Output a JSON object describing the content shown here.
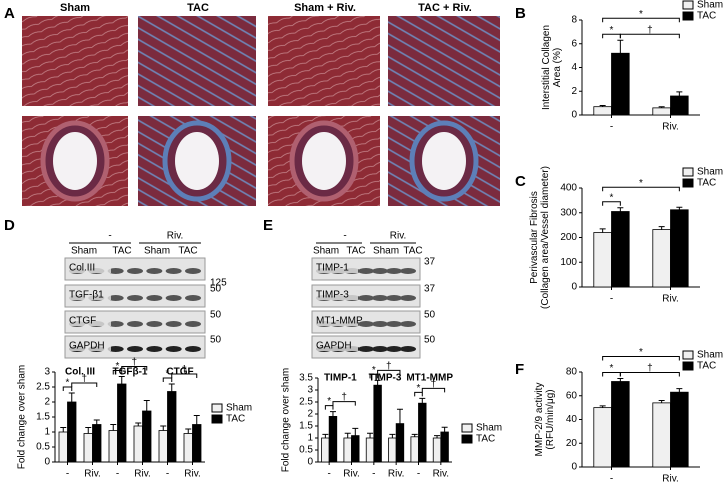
{
  "panel_letters": [
    "A",
    "B",
    "C",
    "D",
    "E",
    "F"
  ],
  "histology": {
    "columns": [
      "Sham",
      "TAC",
      "Sham + Riv.",
      "TAC + Riv."
    ]
  },
  "blots": [
    {
      "treatment": [
        "-",
        "Riv."
      ],
      "lanes": [
        "Sham",
        "TAC",
        "Sham",
        "TAC"
      ],
      "rows": [
        "Col.III",
        "TGF-β1",
        "CTGF",
        "GAPDH"
      ],
      "markers": [
        125,
        50,
        50,
        50
      ]
    },
    {
      "treatment": [
        "-",
        "Riv."
      ],
      "lanes": [
        "Sham",
        "TAC",
        "Sham",
        "TAC"
      ],
      "rows": [
        "TIMP-1",
        "TIMP-3",
        "MT1-MMP",
        "GAPDH"
      ],
      "markers": [
        37,
        37,
        50,
        50
      ]
    }
  ],
  "chart_data": [
    {
      "type": "bar",
      "ylabel": [
        "Interstitial Collagen",
        "Area (%)"
      ],
      "categories": [
        "-",
        "Riv."
      ],
      "series": [
        {
          "name": "Sham",
          "color": "#f0f0f0",
          "values": [
            0.7,
            0.6
          ],
          "errors": [
            0.1,
            0.1
          ]
        },
        {
          "name": "TAC",
          "color": "#000000",
          "values": [
            5.2,
            1.6
          ],
          "errors": [
            1.1,
            0.35
          ]
        }
      ],
      "ylim": [
        0,
        8
      ],
      "yticks": [
        0,
        2,
        4,
        6,
        8
      ],
      "annotations": [
        "*",
        "*",
        "†"
      ]
    },
    {
      "type": "bar",
      "ylabel": [
        "Perivascular Fibrosis",
        "(Collagen area/Vessel diameter)"
      ],
      "categories": [
        "-",
        "Riv."
      ],
      "series": [
        {
          "name": "Sham",
          "color": "#f0f0f0",
          "values": [
            220,
            232
          ],
          "errors": [
            15,
            12
          ]
        },
        {
          "name": "TAC",
          "color": "#000000",
          "values": [
            305,
            312
          ],
          "errors": [
            15,
            10
          ]
        }
      ],
      "ylim": [
        0,
        400
      ],
      "yticks": [
        0,
        100,
        200,
        300,
        400
      ],
      "annotations": [
        "*",
        "*"
      ]
    },
    {
      "type": "bar",
      "ylabel": [
        "Fold change over sham"
      ],
      "groups": [
        "Col. III",
        "TGFβ-1",
        "CTGF"
      ],
      "categories": [
        "-",
        "Riv.",
        "-",
        "Riv.",
        "-",
        "Riv."
      ],
      "series": [
        {
          "name": "Sham",
          "color": "#f0f0f0",
          "values": [
            1.0,
            0.95,
            1.05,
            1.2,
            1.05,
            0.95
          ],
          "errors": [
            0.15,
            0.2,
            0.2,
            0.1,
            0.15,
            0.15
          ]
        },
        {
          "name": "TAC",
          "color": "#000000",
          "values": [
            2.0,
            1.25,
            2.6,
            1.7,
            2.35,
            1.25
          ],
          "errors": [
            0.3,
            0.15,
            0.25,
            0.35,
            0.25,
            0.3
          ]
        }
      ],
      "ylim": [
        0,
        3
      ],
      "yticks": [
        0,
        0.5,
        1,
        1.5,
        2,
        2.5,
        3
      ],
      "annotations": [
        "*",
        "†",
        "*",
        "†",
        "*",
        "†"
      ]
    },
    {
      "type": "bar",
      "ylabel": [
        "Fold change over sham"
      ],
      "groups": [
        "TIMP-1",
        "TIMP-3",
        "MT1-MMP"
      ],
      "categories": [
        "-",
        "Riv.",
        "-",
        "Riv.",
        "-",
        "Riv."
      ],
      "series": [
        {
          "name": "Sham",
          "color": "#f0f0f0",
          "values": [
            1.0,
            1.0,
            1.0,
            1.0,
            1.05,
            1.0
          ],
          "errors": [
            0.15,
            0.2,
            0.2,
            0.15,
            0.1,
            0.1
          ]
        },
        {
          "name": "TAC",
          "color": "#000000",
          "values": [
            1.9,
            1.1,
            3.2,
            1.6,
            2.45,
            1.25
          ],
          "errors": [
            0.2,
            0.3,
            0.2,
            0.6,
            0.2,
            0.2
          ]
        }
      ],
      "ylim": [
        0,
        3.5
      ],
      "yticks": [
        0,
        0.5,
        1,
        1.5,
        2,
        2.5,
        3,
        3.5
      ],
      "annotations": [
        "*",
        "†",
        "*",
        "†",
        "*",
        "†"
      ]
    },
    {
      "type": "bar",
      "ylabel": [
        "MMP-2/9 activity",
        "(RFU/min/μg)"
      ],
      "categories": [
        "-",
        "Riv."
      ],
      "series": [
        {
          "name": "Sham",
          "color": "#f0f0f0",
          "values": [
            50,
            54
          ],
          "errors": [
            1.5,
            2
          ]
        },
        {
          "name": "TAC",
          "color": "#000000",
          "values": [
            72,
            63
          ],
          "errors": [
            2.5,
            3
          ]
        }
      ],
      "ylim": [
        0,
        80
      ],
      "yticks": [
        0,
        20,
        40,
        60,
        80
      ],
      "annotations": [
        "*",
        "*",
        "†"
      ]
    }
  ]
}
